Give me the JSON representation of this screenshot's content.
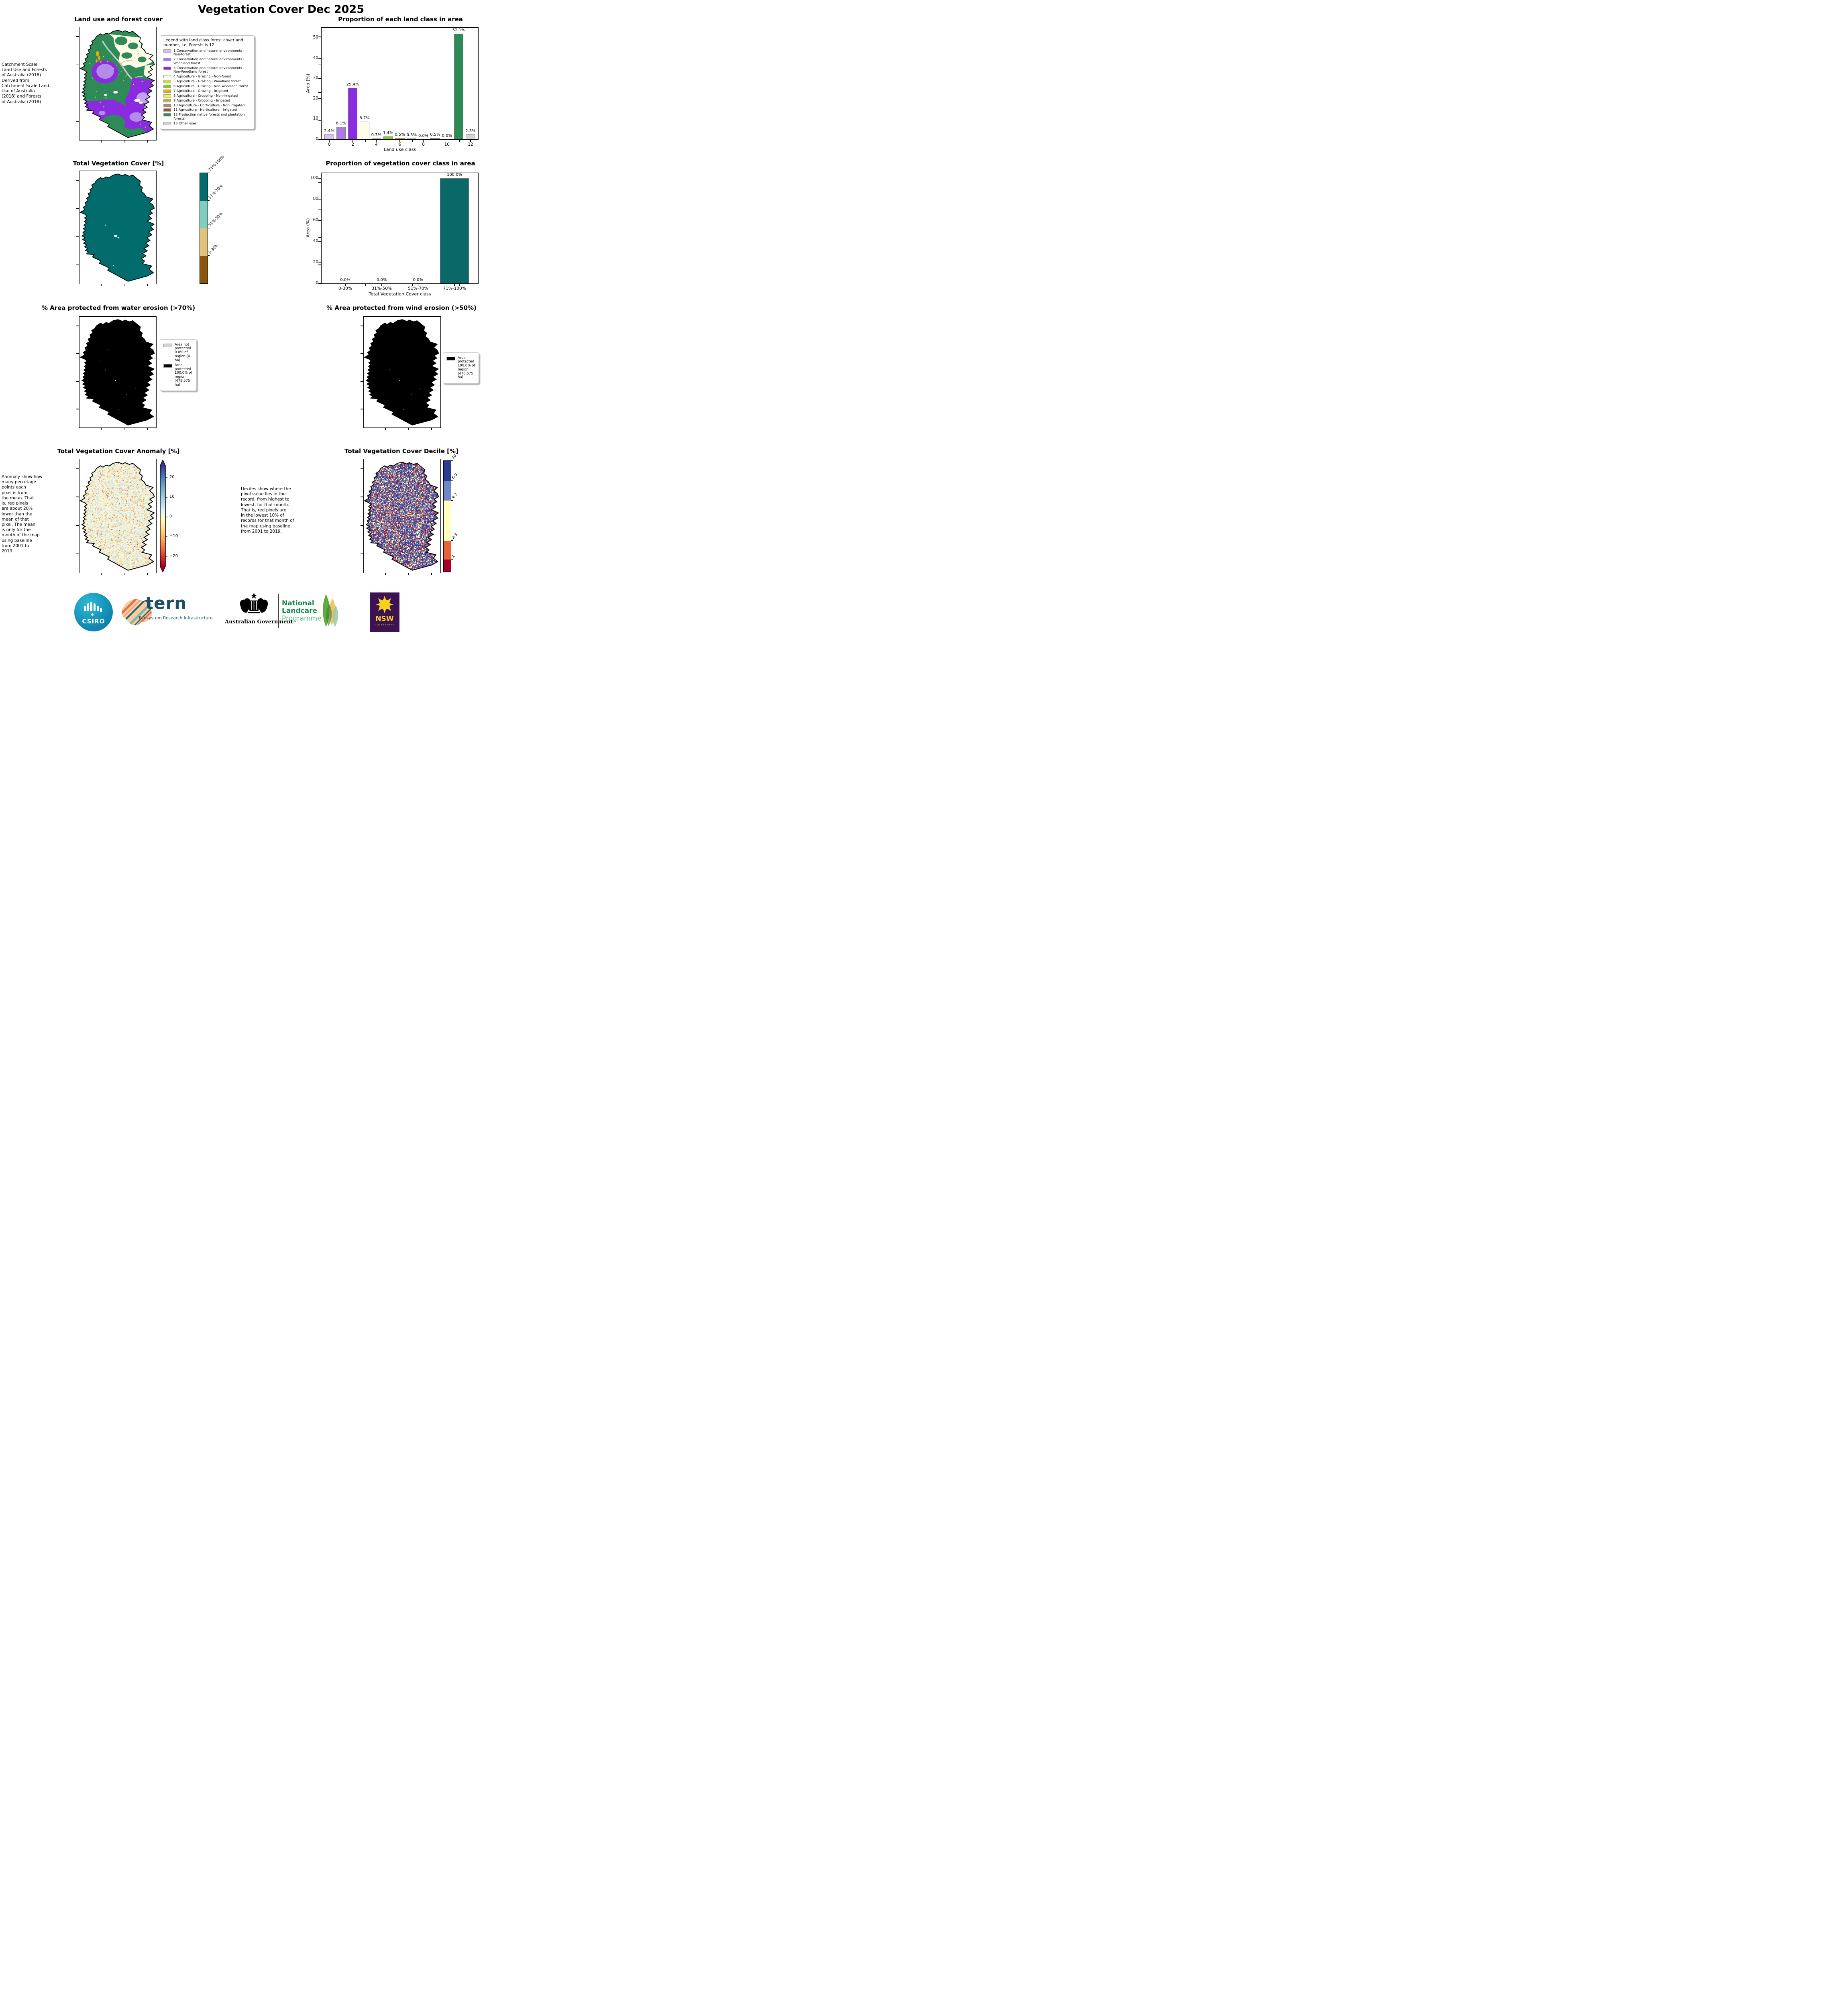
{
  "figure_title": "Vegetation Cover Dec 2025",
  "land_use": {
    "title": "Land use and forest cover",
    "side_note": "Catchment Scale\nLand Use and Forests\nof Australia (2018)\nDerived from\nCatchment Scale Land\nUse of Australia\n(2018) and Forests\nof Australia (2018)",
    "legend_title": "Legend with land class forest cover and number, i.e. Forests is 12",
    "classes": [
      {
        "label": "1 Conservation and natural environments - Non-forest",
        "color": "#d9c1ee"
      },
      {
        "label": "2 Conservation and natural environments - Woodland forest",
        "color": "#ab7ce4"
      },
      {
        "label": "3 Conservation and natural environments - Non-Woodland forest",
        "color": "#8a2be2"
      },
      {
        "label": "4 Agriculture - Grazing - Non-forest",
        "color": "#fffde8"
      },
      {
        "label": "5 Agriculture - Grazing - Woodland forest",
        "color": "#c9d94e"
      },
      {
        "label": "6 Agriculture - Grazing - Non-woodland forest",
        "color": "#7bd020"
      },
      {
        "label": "7 Agriculture - Grazing - Irrigated",
        "color": "#ffa500"
      },
      {
        "label": "8 Agriculture - Cropping - Non-irrigated",
        "color": "#ffff00"
      },
      {
        "label": "9 Agriculture - Cropping - Irrigated",
        "color": "#bdb05a"
      },
      {
        "label": "10 Agriculture - Horticulture - Non-irrigated",
        "color": "#a78978"
      },
      {
        "label": "11 Agriculture - Horticulture - Irrigated",
        "color": "#a0522d"
      },
      {
        "label": "12 Production native forests and plantation forests",
        "color": "#2e8b57"
      },
      {
        "label": "13 Other uses",
        "color": "#d3d3d3"
      }
    ]
  },
  "veg_cover": {
    "title": "Total Vegetation Cover [%]",
    "colorbar": [
      {
        "label": "71%-100%",
        "color": "#026c6c"
      },
      {
        "label": "51%-70%",
        "color": "#80cdc1"
      },
      {
        "label": "31%-50%",
        "color": "#dfc27d"
      },
      {
        "label": "0-30%",
        "color": "#8c550d"
      }
    ]
  },
  "water_erosion": {
    "title": "% Area protected from water erosion (>70%)",
    "legend": [
      {
        "label": "Area not protected 0.0% of region (0 ha)",
        "color": "#d3d3d3"
      },
      {
        "label": "Area protected 100.0% of region (478,575 ha)",
        "color": "#000000"
      }
    ]
  },
  "wind_erosion": {
    "title": "% Area protected from wind erosion (>50%)",
    "legend": [
      {
        "label": "Area protected 100.0% of region (478,575 ha)",
        "color": "#000000"
      }
    ]
  },
  "anomaly": {
    "title": "Total Vegetation Cover Anomaly [%]",
    "note": "Anomaly show how\nmany percetage\npoints each\npixel is from\nthe mean. That\nis, red pixels\nare about 20%\nlower than the\nmean of that\npixel. The mean\nis only for the\nmonth of the map\nusing baseline\nfrom 2001 to\n2019.",
    "colorbar_ticks": [
      "20",
      "10",
      "0",
      "−10",
      "−20"
    ]
  },
  "decile": {
    "title": "Total Vegetation Cover Decile [%]",
    "note": "Deciles show where the\npixel value lies in the\nrecord, from highest to\nlowest, for that month.\nThat is, red pixels are\nin the lowest 10% of\nrecords for that month of\nthe map using baseline\nfrom 2001 to 2019.",
    "colorbar": [
      {
        "label": "10",
        "color": "#2c3a94",
        "h": 18
      },
      {
        "label": "8-9",
        "color": "#6f87c4",
        "h": 18
      },
      {
        "label": "4-7",
        "color": "#ffffbf",
        "h": 36
      },
      {
        "label": "2-3",
        "color": "#e8633a",
        "h": 17
      },
      {
        "label": "1",
        "color": "#a50026",
        "h": 11
      }
    ]
  },
  "chart_data": [
    {
      "type": "bar",
      "title": "Proportion of each land class in area",
      "xlabel": "Land use class",
      "ylabel": "Area (%)",
      "x": [
        0,
        1,
        2,
        3,
        4,
        5,
        6,
        7,
        8,
        9,
        10,
        11,
        12
      ],
      "values": [
        2.4,
        6.1,
        25.4,
        8.7,
        0.3,
        1.4,
        0.5,
        0.3,
        0.0,
        0.5,
        0.0,
        52.1,
        2.3
      ],
      "bar_labels": [
        "2.4%",
        "6.1%",
        "25.4%",
        "8.7%",
        "0.3%",
        "1.4%",
        "0.5%",
        "0.3%",
        "0.0%",
        "0.5%",
        "0.0%",
        "52.1%",
        "2.3%"
      ],
      "bar_colors": [
        "#d9c1ee",
        "#ab7ce4",
        "#8a2be2",
        "#fffde8",
        "#c9d94e",
        "#7bd020",
        "#ffa500",
        "#ffff00",
        "#bdb05a",
        "#a78978",
        "#a0522d",
        "#2e8b57",
        "#d3d3d3"
      ],
      "xticks": [
        0,
        2,
        4,
        6,
        8,
        10,
        12
      ],
      "yticks": [
        0,
        10,
        20,
        30,
        40,
        50
      ],
      "ylim": [
        0,
        55
      ],
      "grid": false,
      "legend_position": "none"
    },
    {
      "type": "bar",
      "title": "Proportion of vegetation cover class in area",
      "xlabel": "Total Vegetation Cover class",
      "ylabel": "Area (%)",
      "categories": [
        "0-30%",
        "31%-50%",
        "51%-70%",
        "71%-100%"
      ],
      "values": [
        0.0,
        0.0,
        0.0,
        100.0
      ],
      "bar_labels": [
        "0.0%",
        "0.0%",
        "0.0%",
        "100.0%"
      ],
      "bar_color": "#0a6868",
      "yticks": [
        0,
        20,
        40,
        60,
        80,
        100
      ],
      "ylim": [
        0,
        105
      ],
      "grid": false,
      "legend_position": "none"
    }
  ],
  "logos": {
    "csiro": "CSIRO",
    "tern": "tern",
    "tern_sub": "Ecosystem Research Infrastructure",
    "aus_gov": "Australian Government",
    "nlp_line1": "National",
    "nlp_line2": "Landcare",
    "nlp_line3": "Programme",
    "nsw": "NSW",
    "nsw_sub": "GOVERNMENT"
  }
}
